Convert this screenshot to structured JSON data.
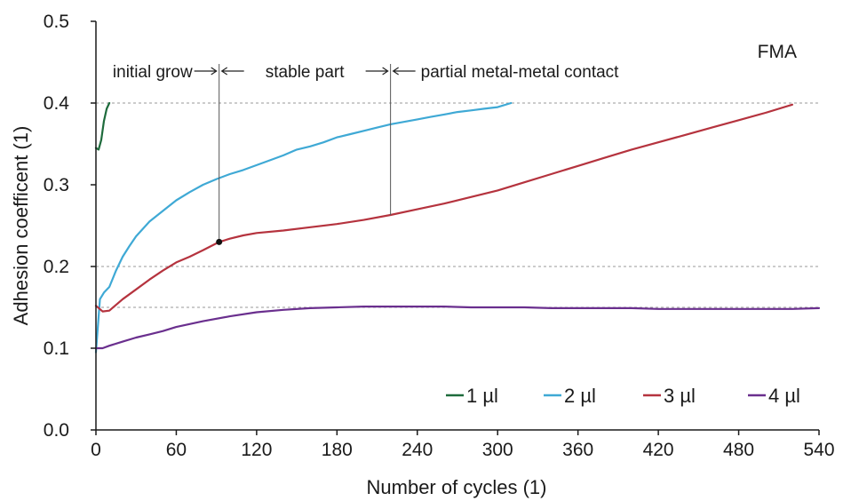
{
  "chart_data": {
    "type": "line",
    "corner_label": "FMA",
    "xlabel": "Number of cycles (1)",
    "ylabel": "Adhesion coefficent (1)",
    "xlim": [
      0,
      540
    ],
    "ylim": [
      0,
      0.5
    ],
    "x_ticks": [
      0,
      60,
      120,
      180,
      240,
      300,
      360,
      420,
      480,
      540
    ],
    "x_tick_labels": [
      "0",
      "60",
      "120",
      "180",
      "240",
      "300",
      "360",
      "420",
      "480",
      "540"
    ],
    "y_ticks": [
      0,
      0.1,
      0.2,
      0.3,
      0.4,
      0.5
    ],
    "y_tick_labels": [
      "0.0",
      "0.1",
      "0.2",
      "0.3",
      "0.4",
      "0.5"
    ],
    "reference_lines": [
      {
        "y": 0.4,
        "style": "dashed"
      },
      {
        "y": 0.2,
        "style": "dashed"
      },
      {
        "y": 0.15,
        "style": "dashed"
      }
    ],
    "phases": [
      {
        "label": "initial grow"
      },
      {
        "label": "stable part"
      },
      {
        "label": "partial metal-metal contact"
      }
    ],
    "phase_boundaries": [
      {
        "x": 92,
        "y_bottom": 0.23,
        "marker": true
      },
      {
        "x": 220,
        "y_bottom": 0.263,
        "marker": false
      }
    ],
    "legend_position": "bottom-right",
    "series": [
      {
        "name": "1 µl",
        "color": "#1e6b3c",
        "x": [
          0,
          2,
          4,
          6,
          8,
          10
        ],
        "y": [
          0.345,
          0.343,
          0.355,
          0.378,
          0.393,
          0.4
        ]
      },
      {
        "name": "2 µl",
        "color": "#3fa9d5",
        "x": [
          0,
          3,
          6,
          10,
          15,
          20,
          25,
          30,
          40,
          50,
          60,
          70,
          80,
          90,
          100,
          110,
          120,
          130,
          140,
          150,
          160,
          170,
          180,
          190,
          200,
          210,
          220,
          230,
          240,
          250,
          260,
          270,
          280,
          290,
          300,
          310
        ],
        "y": [
          0.095,
          0.16,
          0.168,
          0.175,
          0.195,
          0.212,
          0.225,
          0.237,
          0.255,
          0.268,
          0.281,
          0.291,
          0.3,
          0.307,
          0.313,
          0.318,
          0.324,
          0.33,
          0.336,
          0.343,
          0.347,
          0.352,
          0.358,
          0.362,
          0.366,
          0.37,
          0.374,
          0.377,
          0.38,
          0.383,
          0.386,
          0.389,
          0.391,
          0.393,
          0.395,
          0.4
        ]
      },
      {
        "name": "3 µl",
        "color": "#b5333e",
        "x": [
          0,
          5,
          10,
          20,
          30,
          40,
          50,
          60,
          70,
          80,
          92,
          100,
          110,
          120,
          140,
          160,
          180,
          200,
          220,
          240,
          260,
          280,
          300,
          320,
          340,
          360,
          380,
          400,
          420,
          440,
          460,
          480,
          500,
          520
        ],
        "y": [
          0.152,
          0.145,
          0.146,
          0.16,
          0.172,
          0.184,
          0.195,
          0.205,
          0.212,
          0.22,
          0.23,
          0.234,
          0.238,
          0.241,
          0.244,
          0.248,
          0.252,
          0.257,
          0.263,
          0.27,
          0.277,
          0.285,
          0.293,
          0.303,
          0.313,
          0.323,
          0.333,
          0.343,
          0.352,
          0.361,
          0.37,
          0.379,
          0.388,
          0.398
        ]
      },
      {
        "name": "4 µl",
        "color": "#6a2f8e",
        "x": [
          0,
          5,
          10,
          20,
          30,
          40,
          50,
          60,
          80,
          100,
          120,
          140,
          160,
          180,
          200,
          220,
          240,
          260,
          280,
          300,
          320,
          340,
          360,
          380,
          400,
          420,
          440,
          460,
          480,
          500,
          520,
          540
        ],
        "y": [
          0.1,
          0.1,
          0.103,
          0.108,
          0.113,
          0.117,
          0.121,
          0.126,
          0.133,
          0.139,
          0.144,
          0.147,
          0.149,
          0.15,
          0.151,
          0.151,
          0.151,
          0.151,
          0.15,
          0.15,
          0.15,
          0.149,
          0.149,
          0.149,
          0.149,
          0.148,
          0.148,
          0.148,
          0.148,
          0.148,
          0.148,
          0.149
        ]
      }
    ]
  }
}
